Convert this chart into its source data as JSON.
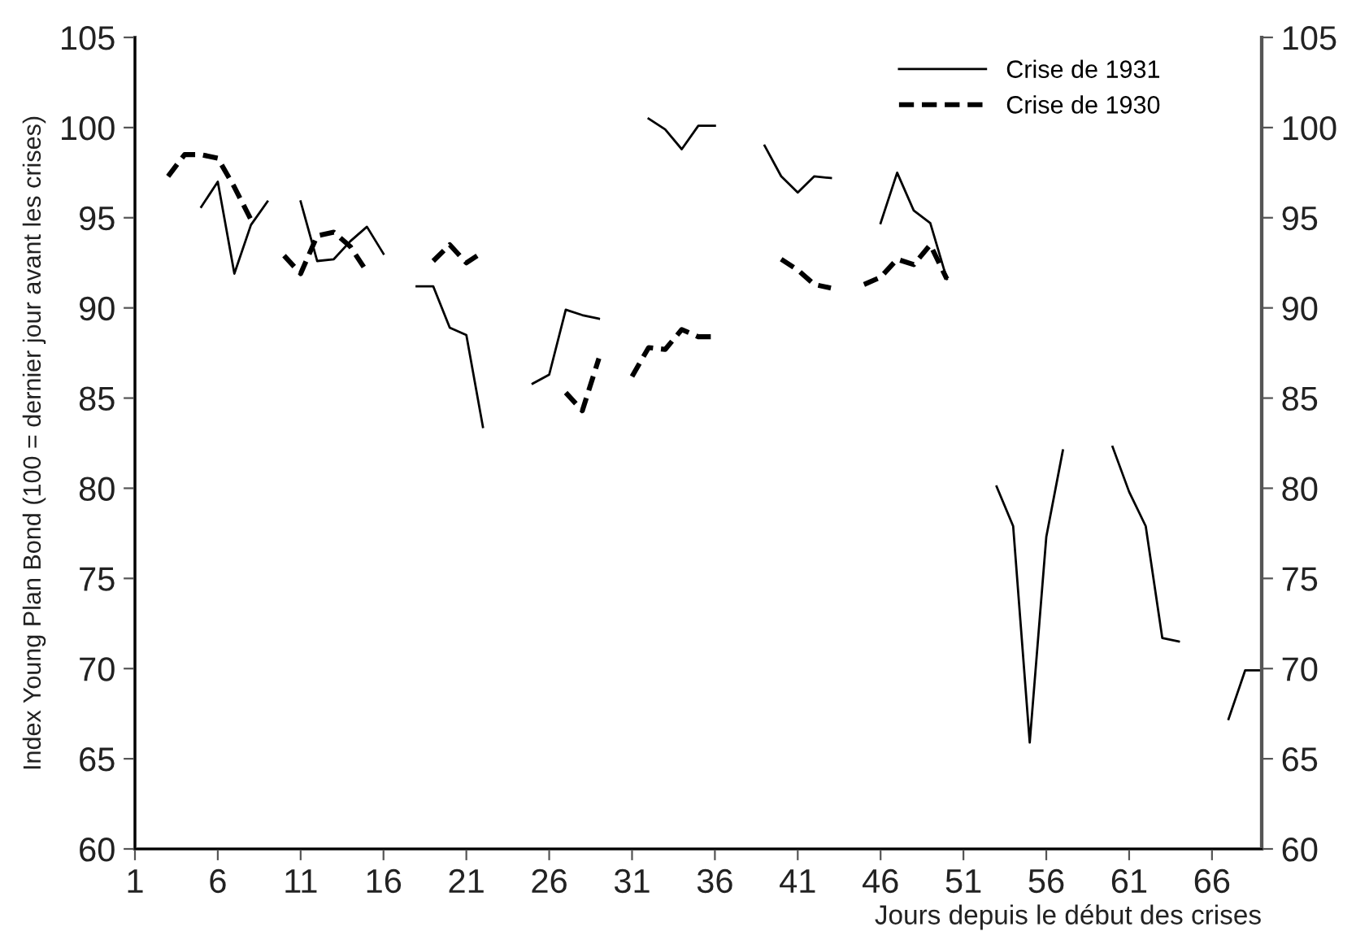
{
  "chart_data": {
    "type": "line",
    "ylabel": "Index Young Plan Bond (100 = dernier jour avant les crises)",
    "xlabel": "Jours depuis le début des crises",
    "series": [
      {
        "name": "Crise de 1931",
        "color": "#000000",
        "line_style": "solid",
        "x": [
          5,
          6,
          7,
          8,
          9,
          10,
          11,
          12,
          13,
          14,
          15,
          16,
          17,
          18,
          19,
          20,
          21,
          22,
          23,
          24,
          25,
          26,
          27,
          28,
          29,
          30,
          31,
          32,
          33,
          34,
          35,
          36,
          37,
          38,
          39,
          40,
          41,
          42,
          43,
          44,
          45,
          46,
          47,
          48,
          49,
          50,
          51,
          52,
          53,
          54,
          55,
          56,
          57,
          58,
          59,
          60,
          61,
          62,
          63,
          64,
          65,
          66,
          67,
          68,
          69
        ],
        "values": [
          95.6,
          97.0,
          91.9,
          94.6,
          95.9,
          null,
          95.9,
          92.6,
          92.7,
          93.7,
          94.5,
          93.0,
          null,
          91.2,
          91.2,
          88.9,
          88.5,
          83.4,
          null,
          null,
          85.8,
          86.3,
          89.9,
          89.6,
          89.4,
          null,
          null,
          100.5,
          99.9,
          98.8,
          100.1,
          100.1,
          null,
          null,
          99.0,
          97.3,
          96.4,
          97.3,
          97.2,
          null,
          null,
          94.7,
          97.5,
          95.4,
          94.7,
          91.6,
          null,
          null,
          80.1,
          77.9,
          65.9,
          77.3,
          82.1,
          null,
          null,
          82.3,
          79.8,
          77.9,
          71.7,
          71.5,
          null,
          null,
          67.2,
          69.9,
          69.9
        ]
      },
      {
        "name": "Crise de 1930",
        "color": "#000000",
        "line_style": "dashed",
        "x": [
          3,
          4,
          5,
          6,
          7,
          8,
          9,
          10,
          11,
          12,
          13,
          14,
          15,
          16,
          17,
          18,
          19,
          20,
          21,
          22,
          23,
          24,
          25,
          26,
          27,
          28,
          29,
          30,
          31,
          32,
          33,
          34,
          35,
          36,
          37,
          38,
          39,
          40,
          41,
          42,
          43,
          44,
          45,
          46,
          47,
          48,
          49,
          50
        ],
        "values": [
          97.3,
          98.5,
          98.5,
          98.3,
          96.7,
          94.9,
          null,
          92.9,
          91.9,
          94.0,
          94.2,
          93.4,
          92.0,
          null,
          null,
          null,
          92.6,
          93.5,
          92.5,
          93.1,
          null,
          null,
          null,
          null,
          85.3,
          84.3,
          87.2,
          null,
          86.2,
          87.8,
          87.7,
          88.8,
          88.4,
          88.4,
          null,
          null,
          null,
          92.7,
          92.1,
          91.3,
          91.1,
          null,
          91.3,
          91.7,
          92.7,
          92.4,
          93.5,
          91.6
        ]
      }
    ],
    "xlim": [
      1,
      69
    ],
    "xticks": [
      1,
      6,
      11,
      16,
      21,
      26,
      31,
      36,
      41,
      46,
      51,
      56,
      61,
      66
    ],
    "ylim": [
      60,
      105
    ],
    "yticks": [
      60,
      65,
      70,
      75,
      80,
      85,
      90,
      95,
      100,
      105
    ],
    "y2lim": [
      60,
      105
    ],
    "y2ticks": [
      60,
      65,
      70,
      75,
      80,
      85,
      90,
      95,
      100,
      105
    ],
    "legend": "top right",
    "grid": false
  }
}
